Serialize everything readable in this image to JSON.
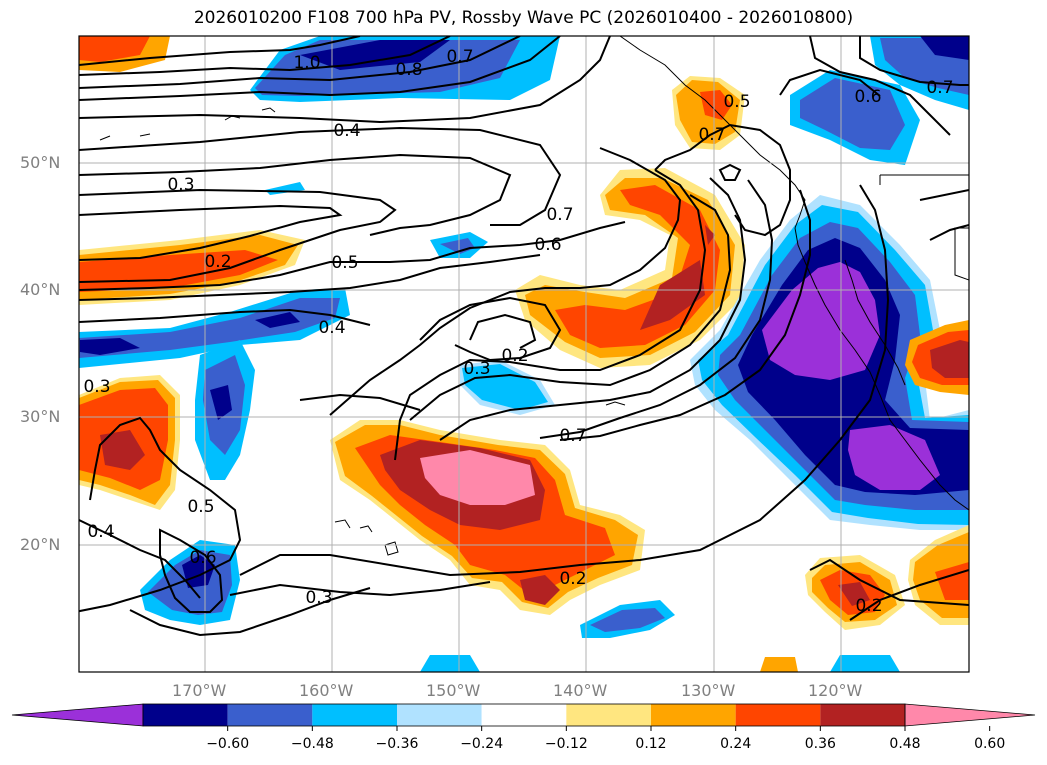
{
  "title": "2026010200 F108 700 hPa PV, Rossby Wave PC (2026010400 - 2026010800)",
  "lat_labels": [
    "50°N",
    "40°N",
    "30°N",
    "20°N"
  ],
  "lon_labels": [
    "170°W",
    "160°W",
    "150°W",
    "140°W",
    "130°W",
    "120°W"
  ],
  "contour_labels": [
    "1.0",
    "0.8",
    "0.7",
    "0.5",
    "0.4",
    "0.3",
    "0.2",
    "0.5",
    "0.4",
    "0.7",
    "0.6",
    "0.7",
    "0.2",
    "0.3",
    "0.3",
    "0.7",
    "0.5",
    "0.4",
    "0.6",
    "0.3",
    "0.2",
    "0.6",
    "0.7",
    "0.2"
  ],
  "colorbar": {
    "ticks": [
      "−0.60",
      "−0.48",
      "−0.36",
      "−0.24",
      "−0.12",
      "0.12",
      "0.24",
      "0.36",
      "0.48",
      "0.60"
    ],
    "colors": [
      "#9b30d9",
      "#00008b",
      "#3a5fcd",
      "#00bfff",
      "#b0e2ff",
      "#ffffff",
      "#ffe680",
      "#ffa500",
      "#ff4500",
      "#b22222",
      "#ff88aa"
    ]
  },
  "colors": {
    "grid": "#b0b0b0",
    "axis_label": "#808080",
    "contour": "#000000"
  }
}
